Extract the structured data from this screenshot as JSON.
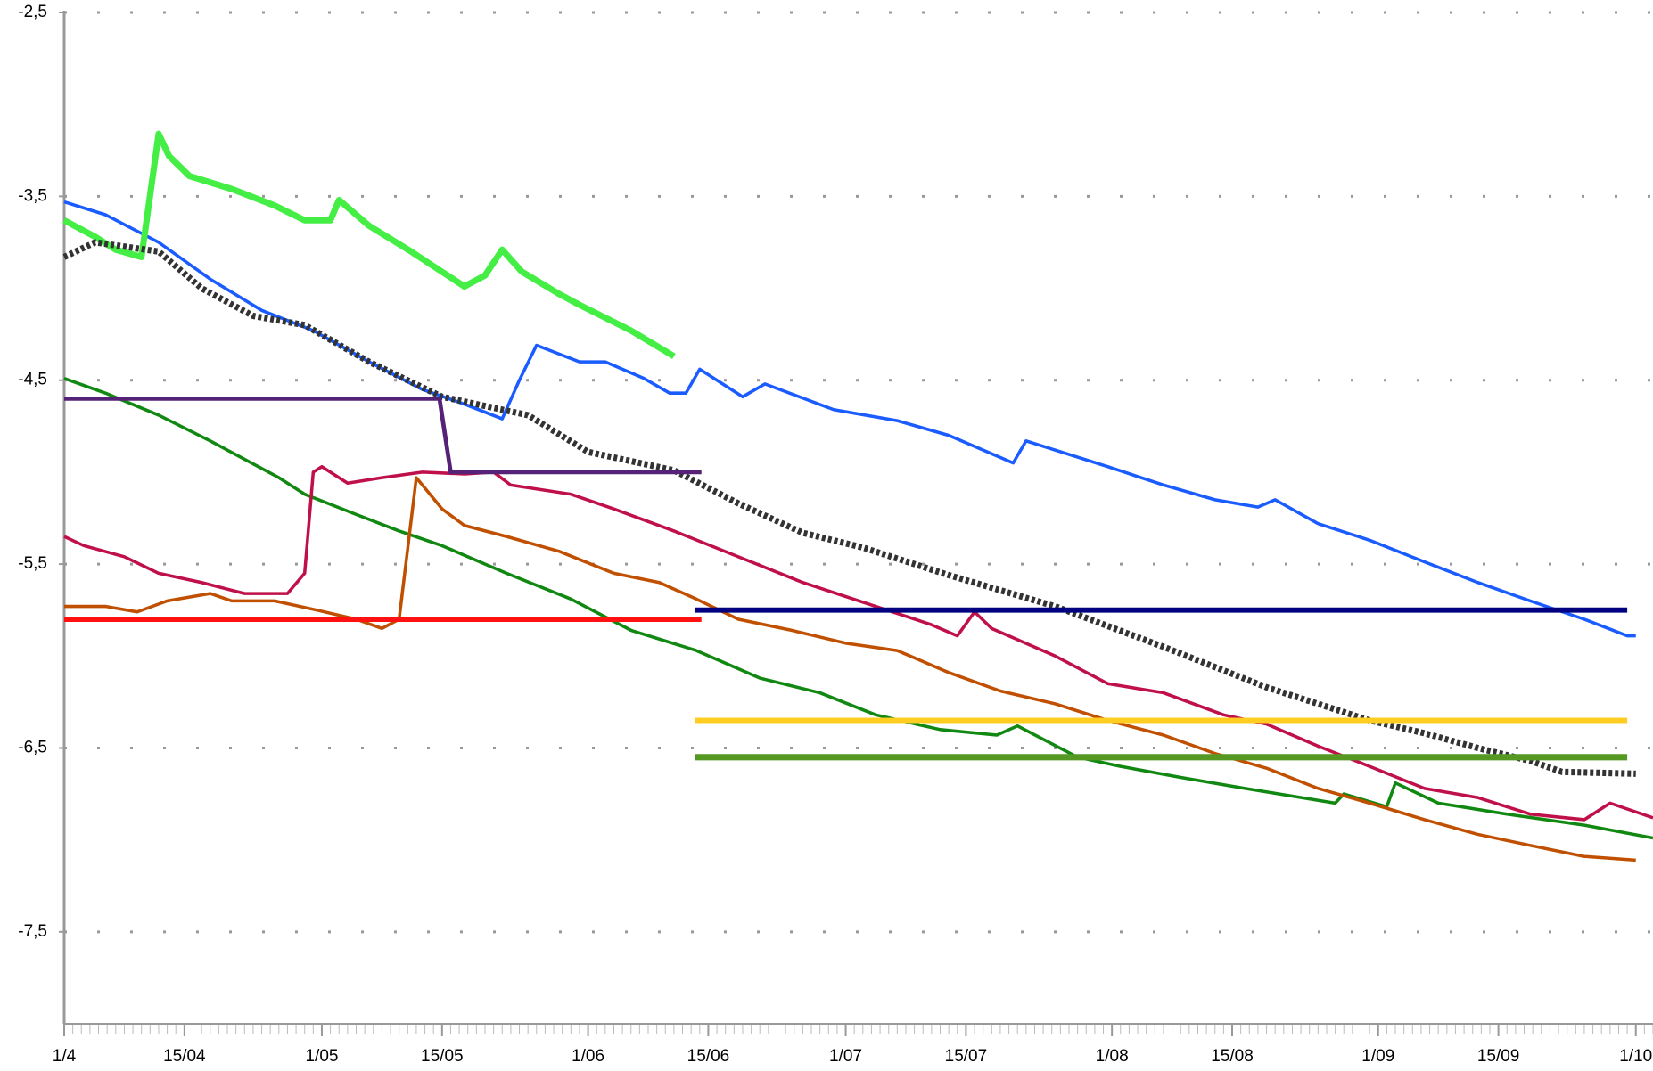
{
  "chart_data": {
    "type": "line",
    "xlim": [
      0,
      185
    ],
    "ylim": [
      -8,
      -2.5
    ],
    "grid": true,
    "xticks": [
      {
        "value": 0,
        "label": "1/4"
      },
      {
        "value": 14,
        "label": "15/04"
      },
      {
        "value": 30,
        "label": "1/05"
      },
      {
        "value": 44,
        "label": "15/05"
      },
      {
        "value": 61,
        "label": "1/06"
      },
      {
        "value": 75,
        "label": "15/06"
      },
      {
        "value": 91,
        "label": "1/07"
      },
      {
        "value": 105,
        "label": "15/07"
      },
      {
        "value": 122,
        "label": "1/08"
      },
      {
        "value": 136,
        "label": "15/08"
      },
      {
        "value": 153,
        "label": "1/09"
      },
      {
        "value": 167,
        "label": "15/09"
      },
      {
        "value": 183,
        "label": "1/10"
      }
    ],
    "yticks": [
      {
        "value": -2.5,
        "label": "-2,5"
      },
      {
        "value": -3.5,
        "label": "-3,5"
      },
      {
        "value": -4.5,
        "label": "-4,5"
      },
      {
        "value": -5.5,
        "label": "-5,5"
      },
      {
        "value": -6.5,
        "label": "-6,5"
      },
      {
        "value": -7.5,
        "label": "-7,5"
      }
    ],
    "series": [
      {
        "color": "#1a5cff",
        "line_width": 3,
        "x": [
          0,
          4.8,
          11,
          17,
          23,
          29,
          35.5,
          41.7,
          46.6,
          51,
          53,
          55,
          60,
          63,
          67.5,
          70.5,
          72.4,
          74,
          79,
          81.6,
          89.6,
          97,
          103,
          110.5,
          112,
          121.5,
          128,
          134,
          139,
          141,
          146,
          152,
          158.5,
          164.6,
          170.7,
          177,
          182,
          183
        ],
        "values": [
          -3.53,
          -3.6,
          -3.75,
          -3.95,
          -4.12,
          -4.23,
          -4.4,
          -4.55,
          -4.63,
          -4.71,
          -4.5,
          -4.31,
          -4.4,
          -4.4,
          -4.49,
          -4.57,
          -4.57,
          -4.44,
          -4.59,
          -4.52,
          -4.66,
          -4.72,
          -4.8,
          -4.95,
          -4.83,
          -4.97,
          -5.07,
          -5.15,
          -5.19,
          -5.15,
          -5.28,
          -5.37,
          -5.49,
          -5.6,
          -5.7,
          -5.8,
          -5.89,
          -5.89
        ]
      },
      {
        "color": "#44ee44",
        "line_width": 6,
        "x": [
          0,
          3.6,
          6,
          9,
          11,
          12.2,
          14.6,
          19.5,
          24.5,
          28,
          31,
          32,
          35.5,
          40.4,
          46.6,
          49,
          51,
          53.3,
          57.6,
          60,
          66,
          71
        ],
        "values": [
          -3.63,
          -3.72,
          -3.79,
          -3.83,
          -3.16,
          -3.28,
          -3.39,
          -3.46,
          -3.55,
          -3.63,
          -3.63,
          -3.52,
          -3.66,
          -3.8,
          -3.99,
          -3.93,
          -3.79,
          -3.91,
          -4.03,
          -4.09,
          -4.23,
          -4.37
        ]
      },
      {
        "color": "#333333",
        "line_width": 6,
        "dashed": true,
        "x": [
          0,
          3.6,
          11,
          16,
          22,
          28,
          35.5,
          44,
          54,
          61,
          71,
          78.5,
          86,
          93,
          103,
          115.4,
          128,
          134,
          140,
          146,
          152,
          158.4,
          164.6,
          170.7,
          174.4,
          183
        ],
        "values": [
          -3.83,
          -3.75,
          -3.8,
          -4.0,
          -4.15,
          -4.2,
          -4.4,
          -4.59,
          -4.69,
          -4.89,
          -4.99,
          -5.17,
          -5.33,
          -5.41,
          -5.56,
          -5.73,
          -5.95,
          -6.06,
          -6.17,
          -6.26,
          -6.35,
          -6.42,
          -6.5,
          -6.57,
          -6.63,
          -6.64
        ]
      },
      {
        "color": "#118811",
        "line_width": 3,
        "x": [
          0,
          4.8,
          11,
          17,
          25,
          28,
          34,
          39,
          44,
          51.5,
          59,
          66,
          73.6,
          81,
          88,
          94.5,
          102,
          108.6,
          111,
          118,
          123,
          130,
          137.5,
          148,
          149,
          154,
          155,
          160,
          168,
          177,
          185
        ],
        "values": [
          -4.49,
          -4.57,
          -4.69,
          -4.83,
          -5.03,
          -5.12,
          -5.23,
          -5.32,
          -5.4,
          -5.55,
          -5.69,
          -5.86,
          -5.97,
          -6.12,
          -6.2,
          -6.32,
          -6.4,
          -6.43,
          -6.38,
          -6.55,
          -6.6,
          -6.66,
          -6.72,
          -6.8,
          -6.75,
          -6.82,
          -6.69,
          -6.8,
          -6.86,
          -6.92,
          -6.99
        ]
      },
      {
        "color": "#c0104a",
        "line_width": 3,
        "x": [
          0,
          2.3,
          7,
          11,
          16,
          21,
          26,
          28,
          29,
          30,
          33,
          37,
          41.7,
          46.6,
          50,
          52,
          59,
          64,
          71,
          78.5,
          86,
          94.5,
          101,
          104,
          106,
          108,
          115.4,
          121.5,
          128,
          135,
          140,
          146,
          152,
          158.4,
          164.6,
          170.7,
          177,
          180,
          185
        ],
        "values": [
          -5.35,
          -5.4,
          -5.46,
          -5.55,
          -5.6,
          -5.66,
          -5.66,
          -5.55,
          -5.0,
          -4.97,
          -5.06,
          -5.03,
          -5.0,
          -5.01,
          -5.0,
          -5.07,
          -5.12,
          -5.2,
          -5.32,
          -5.46,
          -5.6,
          -5.73,
          -5.83,
          -5.89,
          -5.76,
          -5.85,
          -6.0,
          -6.15,
          -6.2,
          -6.32,
          -6.37,
          -6.49,
          -6.6,
          -6.72,
          -6.77,
          -6.86,
          -6.89,
          -6.8,
          -6.88
        ]
      },
      {
        "color": "#c05000",
        "line_width": 3,
        "x": [
          0,
          4.8,
          8.5,
          12,
          17,
          19.5,
          24.5,
          29.4,
          34,
          37,
          39,
          41,
          44,
          46.6,
          51.5,
          57.6,
          64,
          69.3,
          73.6,
          78.5,
          84.7,
          91,
          97,
          103,
          109,
          115.4,
          121.5,
          128,
          134,
          140,
          146,
          152,
          158.4,
          164.6,
          170.7,
          177,
          183
        ],
        "values": [
          -5.73,
          -5.73,
          -5.76,
          -5.7,
          -5.66,
          -5.7,
          -5.7,
          -5.75,
          -5.8,
          -5.85,
          -5.8,
          -5.03,
          -5.2,
          -5.29,
          -5.35,
          -5.43,
          -5.55,
          -5.6,
          -5.69,
          -5.8,
          -5.86,
          -5.93,
          -5.97,
          -6.09,
          -6.19,
          -6.26,
          -6.35,
          -6.43,
          -6.53,
          -6.61,
          -6.72,
          -6.8,
          -6.89,
          -6.97,
          -7.03,
          -7.09,
          -7.11
        ]
      },
      {
        "color": "#552277",
        "line_width": 4,
        "x": [
          0,
          43.7,
          45,
          74.2
        ],
        "values": [
          -4.6,
          -4.6,
          -5.0,
          -5.0
        ]
      },
      {
        "color": "#ff1111",
        "line_width": 5,
        "x": [
          0,
          74.2
        ],
        "values": [
          -5.8,
          -5.8
        ]
      },
      {
        "color": "#000080",
        "line_width": 5,
        "x": [
          73.4,
          182
        ],
        "values": [
          -5.75,
          -5.75
        ]
      },
      {
        "color": "#ffcc22",
        "line_width": 5,
        "x": [
          73.4,
          182
        ],
        "values": [
          -6.35,
          -6.35
        ]
      },
      {
        "color": "#559922",
        "line_width": 6,
        "x": [
          73.4,
          182
        ],
        "values": [
          -6.55,
          -6.55
        ]
      }
    ]
  }
}
